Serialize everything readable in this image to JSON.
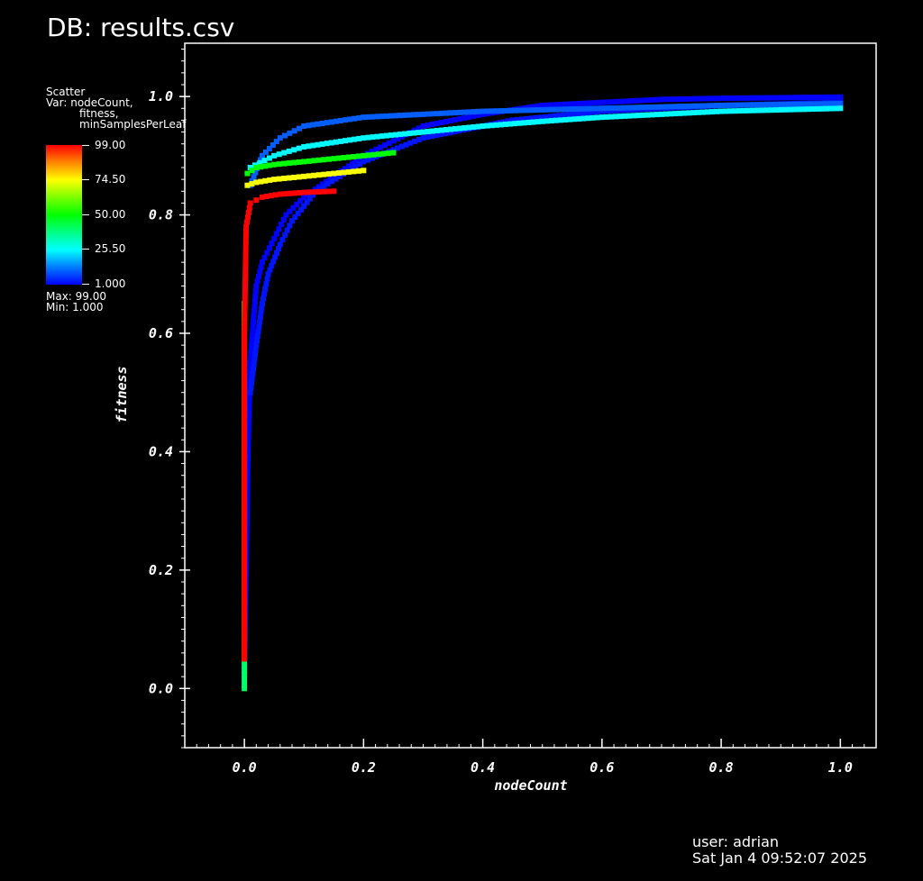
{
  "header": {
    "db_title": "DB: results.csv"
  },
  "legend": {
    "plot_type": "Scatter",
    "var_line1": "Var: nodeCount,",
    "var_line2": "fitness,",
    "var_line3": "minSamplesPerLeaf",
    "colorbar_labels": [
      "99.00",
      "74.50",
      "50.00",
      "25.50",
      "1.000"
    ],
    "max_text": "Max:  99.00",
    "min_text": "Min:  1.000"
  },
  "footer": {
    "user": "user: adrian",
    "date": "Sat Jan  4 09:52:07 2025"
  },
  "chart_data": {
    "type": "scatter",
    "title": "",
    "xlabel": "nodeCount",
    "ylabel": "fitness",
    "xlim": [
      -0.1,
      1.06
    ],
    "ylim": [
      -0.1,
      1.09
    ],
    "x_ticks": [
      "0.0",
      "0.2",
      "0.4",
      "0.6",
      "0.8",
      "1.0"
    ],
    "y_ticks": [
      "0.0",
      "0.2",
      "0.4",
      "0.6",
      "0.8",
      "1.0"
    ],
    "color_variable": "minSamplesPerLeaf",
    "color_range": [
      1,
      99
    ],
    "colormap": [
      "#0000ff",
      "#00ffff",
      "#00ff00",
      "#ffff00",
      "#ff0000"
    ],
    "series": [
      {
        "color_value": 1,
        "points": [
          [
            0.0,
            0.02
          ],
          [
            0.003,
            0.2
          ],
          [
            0.006,
            0.4
          ],
          [
            0.01,
            0.55
          ],
          [
            0.015,
            0.62
          ],
          [
            0.02,
            0.68
          ],
          [
            0.03,
            0.72
          ],
          [
            0.05,
            0.76
          ],
          [
            0.07,
            0.8
          ],
          [
            0.1,
            0.83
          ],
          [
            0.2,
            0.9
          ],
          [
            0.3,
            0.95
          ],
          [
            0.4,
            0.97
          ],
          [
            0.5,
            0.985
          ],
          [
            0.6,
            0.99
          ],
          [
            0.7,
            0.995
          ],
          [
            0.8,
            0.997
          ],
          [
            0.9,
            0.998
          ],
          [
            1.0,
            0.999
          ]
        ]
      },
      {
        "color_value": 3,
        "points": [
          [
            0.01,
            0.5
          ],
          [
            0.02,
            0.58
          ],
          [
            0.03,
            0.65
          ],
          [
            0.04,
            0.7
          ],
          [
            0.06,
            0.75
          ],
          [
            0.08,
            0.79
          ],
          [
            0.12,
            0.84
          ],
          [
            0.2,
            0.89
          ],
          [
            0.3,
            0.93
          ],
          [
            0.45,
            0.96
          ],
          [
            0.6,
            0.975
          ],
          [
            0.8,
            0.985
          ],
          [
            1.0,
            0.99
          ]
        ]
      },
      {
        "color_value": 10,
        "points": [
          [
            0.01,
            0.85
          ],
          [
            0.03,
            0.9
          ],
          [
            0.06,
            0.93
          ],
          [
            0.1,
            0.95
          ],
          [
            0.2,
            0.965
          ],
          [
            0.4,
            0.975
          ],
          [
            0.6,
            0.98
          ],
          [
            0.8,
            0.985
          ],
          [
            1.0,
            0.988
          ]
        ]
      },
      {
        "color_value": 25,
        "points": [
          [
            0.01,
            0.88
          ],
          [
            0.05,
            0.9
          ],
          [
            0.1,
            0.915
          ],
          [
            0.2,
            0.93
          ],
          [
            0.3,
            0.94
          ],
          [
            0.4,
            0.95
          ],
          [
            0.5,
            0.958
          ],
          [
            0.6,
            0.965
          ],
          [
            0.8,
            0.975
          ],
          [
            1.0,
            0.98
          ]
        ]
      },
      {
        "color_value": 50,
        "points": [
          [
            0.005,
            0.87
          ],
          [
            0.02,
            0.88
          ],
          [
            0.05,
            0.885
          ],
          [
            0.1,
            0.89
          ],
          [
            0.15,
            0.895
          ],
          [
            0.2,
            0.9
          ],
          [
            0.25,
            0.905
          ]
        ]
      },
      {
        "color_value": 74,
        "points": [
          [
            0.005,
            0.85
          ],
          [
            0.02,
            0.855
          ],
          [
            0.05,
            0.86
          ],
          [
            0.1,
            0.865
          ],
          [
            0.15,
            0.87
          ],
          [
            0.2,
            0.875
          ]
        ]
      },
      {
        "color_value": 99,
        "points": [
          [
            0.0,
            0.05
          ],
          [
            0.0,
            0.3
          ],
          [
            0.0,
            0.6
          ],
          [
            0.003,
            0.78
          ],
          [
            0.01,
            0.82
          ],
          [
            0.03,
            0.83
          ],
          [
            0.06,
            0.835
          ],
          [
            0.1,
            0.838
          ],
          [
            0.15,
            0.84
          ]
        ]
      },
      {
        "color_value": 40,
        "points": [
          [
            0.0,
            0.0
          ],
          [
            0.0,
            0.1
          ],
          [
            0.0,
            0.25
          ],
          [
            0.0,
            0.45
          ],
          [
            0.0,
            0.65
          ]
        ]
      }
    ]
  }
}
